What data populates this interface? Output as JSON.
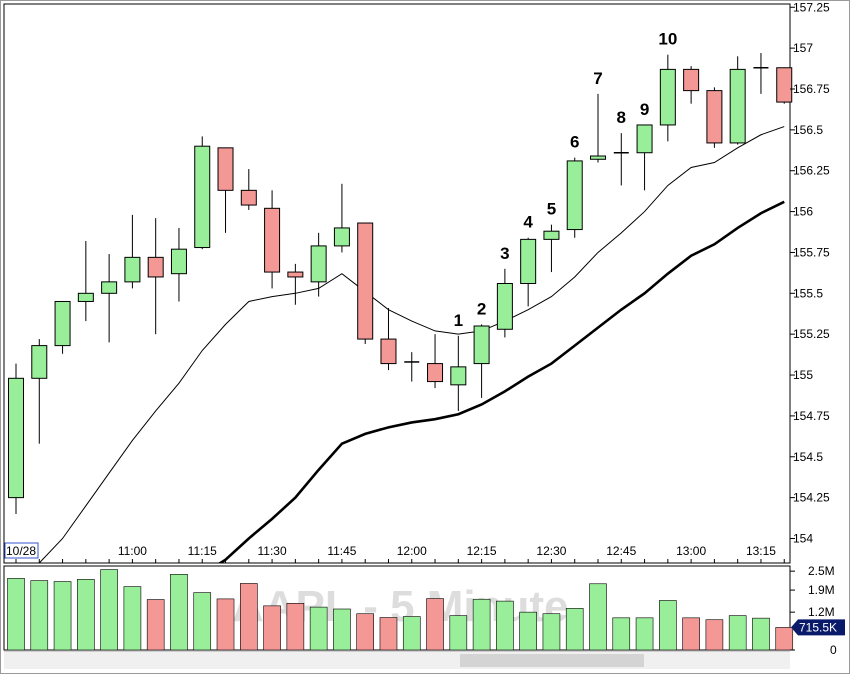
{
  "watermark": "AAPL - 5 Minute",
  "chart_data": {
    "type": "candlestick",
    "price_axis": {
      "ylim": [
        153.85,
        157.27
      ],
      "ticks": [
        154,
        154.25,
        154.5,
        154.75,
        155,
        155.25,
        155.5,
        155.75,
        156,
        156.25,
        156.5,
        156.75,
        157,
        157.25
      ],
      "tick_labels": [
        "154",
        "154.25",
        "154.5",
        "154.75",
        "155",
        "155.25",
        "155.5",
        "155.75",
        "156",
        "156.25",
        "156.5",
        "156.75",
        "157",
        "157.25"
      ]
    },
    "time_axis": {
      "labels": [
        {
          "index": 0,
          "text": "10/28",
          "boxed": true
        },
        {
          "index": 5,
          "text": "11:00"
        },
        {
          "index": 8,
          "text": "11:15"
        },
        {
          "index": 11,
          "text": "11:30"
        },
        {
          "index": 14,
          "text": "11:45"
        },
        {
          "index": 17,
          "text": "12:00"
        },
        {
          "index": 20,
          "text": "12:15"
        },
        {
          "index": 23,
          "text": "12:30"
        },
        {
          "index": 26,
          "text": "12:45"
        },
        {
          "index": 29,
          "text": "13:00"
        },
        {
          "index": 32,
          "text": "13:15"
        }
      ]
    },
    "colors": {
      "up": "#99ee99",
      "down": "#f49896",
      "outline": "#000000"
    },
    "candles": [
      {
        "o": 154.25,
        "h": 155.07,
        "l": 154.15,
        "c": 154.98
      },
      {
        "o": 154.98,
        "h": 155.22,
        "l": 154.58,
        "c": 155.18
      },
      {
        "o": 155.18,
        "h": 155.45,
        "l": 155.13,
        "c": 155.45
      },
      {
        "o": 155.45,
        "h": 155.82,
        "l": 155.33,
        "c": 155.5
      },
      {
        "o": 155.5,
        "h": 155.74,
        "l": 155.2,
        "c": 155.57
      },
      {
        "o": 155.57,
        "h": 155.98,
        "l": 155.53,
        "c": 155.72
      },
      {
        "o": 155.72,
        "h": 155.96,
        "l": 155.25,
        "c": 155.6
      },
      {
        "o": 155.62,
        "h": 155.9,
        "l": 155.45,
        "c": 155.77
      },
      {
        "o": 155.78,
        "h": 156.46,
        "l": 155.77,
        "c": 156.4
      },
      {
        "o": 156.39,
        "h": 156.39,
        "l": 155.87,
        "c": 156.13
      },
      {
        "o": 156.13,
        "h": 156.26,
        "l": 156.01,
        "c": 156.04
      },
      {
        "o": 156.02,
        "h": 156.13,
        "l": 155.53,
        "c": 155.63
      },
      {
        "o": 155.63,
        "h": 155.68,
        "l": 155.43,
        "c": 155.6
      },
      {
        "o": 155.57,
        "h": 155.87,
        "l": 155.48,
        "c": 155.79
      },
      {
        "o": 155.79,
        "h": 156.17,
        "l": 155.75,
        "c": 155.9
      },
      {
        "o": 155.93,
        "h": 155.92,
        "l": 155.19,
        "c": 155.22
      },
      {
        "o": 155.22,
        "h": 155.41,
        "l": 155.03,
        "c": 155.07
      },
      {
        "o": 155.08,
        "h": 155.14,
        "l": 154.96,
        "c": 155.08
      },
      {
        "o": 155.07,
        "h": 155.25,
        "l": 154.92,
        "c": 154.96
      },
      {
        "o": 154.94,
        "h": 155.24,
        "l": 154.78,
        "c": 155.05
      },
      {
        "o": 155.07,
        "h": 155.31,
        "l": 154.86,
        "c": 155.3
      },
      {
        "o": 155.28,
        "h": 155.65,
        "l": 155.23,
        "c": 155.56
      },
      {
        "o": 155.56,
        "h": 155.84,
        "l": 155.42,
        "c": 155.83
      },
      {
        "o": 155.83,
        "h": 155.92,
        "l": 155.63,
        "c": 155.88
      },
      {
        "o": 155.89,
        "h": 156.33,
        "l": 155.84,
        "c": 156.31
      },
      {
        "o": 156.32,
        "h": 156.72,
        "l": 156.3,
        "c": 156.34
      },
      {
        "o": 156.35,
        "h": 156.48,
        "l": 156.16,
        "c": 156.36
      },
      {
        "o": 156.36,
        "h": 156.53,
        "l": 156.13,
        "c": 156.53
      },
      {
        "o": 156.53,
        "h": 156.96,
        "l": 156.43,
        "c": 156.87
      },
      {
        "o": 156.87,
        "h": 156.89,
        "l": 156.66,
        "c": 156.74
      },
      {
        "o": 156.74,
        "h": 156.76,
        "l": 156.39,
        "c": 156.42
      },
      {
        "o": 156.42,
        "h": 156.95,
        "l": 156.41,
        "c": 156.87
      },
      {
        "o": 156.88,
        "h": 156.97,
        "l": 156.72,
        "c": 156.88
      },
      {
        "o": 156.88,
        "h": 156.88,
        "l": 156.66,
        "c": 156.67
      }
    ],
    "moving_averages": [
      {
        "weight": "thin",
        "values": [
          153.7,
          153.85,
          154.0,
          154.2,
          154.4,
          154.6,
          154.78,
          154.95,
          155.15,
          155.31,
          155.45,
          155.48,
          155.5,
          155.53,
          155.62,
          155.51,
          155.4,
          155.33,
          155.27,
          155.25,
          155.27,
          155.33,
          155.4,
          155.48,
          155.6,
          155.75,
          155.87,
          156.0,
          156.16,
          156.27,
          156.3,
          156.39,
          156.47,
          156.52
        ]
      },
      {
        "weight": "thick",
        "values": [
          153.3,
          153.35,
          153.4,
          153.45,
          153.5,
          153.55,
          153.62,
          153.7,
          153.78,
          153.87,
          154.0,
          154.12,
          154.25,
          154.42,
          154.58,
          154.64,
          154.68,
          154.71,
          154.73,
          154.76,
          154.82,
          154.9,
          154.99,
          155.07,
          155.18,
          155.29,
          155.4,
          155.5,
          155.62,
          155.73,
          155.8,
          155.9,
          155.99,
          156.06
        ]
      }
    ],
    "annotations": [
      {
        "index": 19,
        "text": "1"
      },
      {
        "index": 20,
        "text": "2"
      },
      {
        "index": 21,
        "text": "3"
      },
      {
        "index": 22,
        "text": "4"
      },
      {
        "index": 23,
        "text": "5"
      },
      {
        "index": 24,
        "text": "6"
      },
      {
        "index": 25,
        "text": "7"
      },
      {
        "index": 26,
        "text": "8"
      },
      {
        "index": 27,
        "text": "9"
      },
      {
        "index": 28,
        "text": "10"
      }
    ],
    "volume": {
      "ylim": [
        0,
        2.6
      ],
      "unit": "M",
      "tick_labels": [
        {
          "value": 2.5,
          "text": "2.5M"
        },
        {
          "value": 1.9,
          "text": "1.9M"
        },
        {
          "value": 1.2,
          "text": "1.2M"
        },
        {
          "value": 0,
          "text": "0"
        }
      ],
      "current_label": "715.5K",
      "current_value": 0.7155,
      "values": [
        2.27,
        2.2,
        2.17,
        2.24,
        2.55,
        2.01,
        1.6,
        2.4,
        1.82,
        1.62,
        2.11,
        1.4,
        1.48,
        1.36,
        1.3,
        1.15,
        1.03,
        1.06,
        1.63,
        1.09,
        1.61,
        1.55,
        1.2,
        1.15,
        1.32,
        2.1,
        1.02,
        1.02,
        1.57,
        1.02,
        0.96,
        1.09,
        1.01,
        0.7155
      ]
    }
  }
}
